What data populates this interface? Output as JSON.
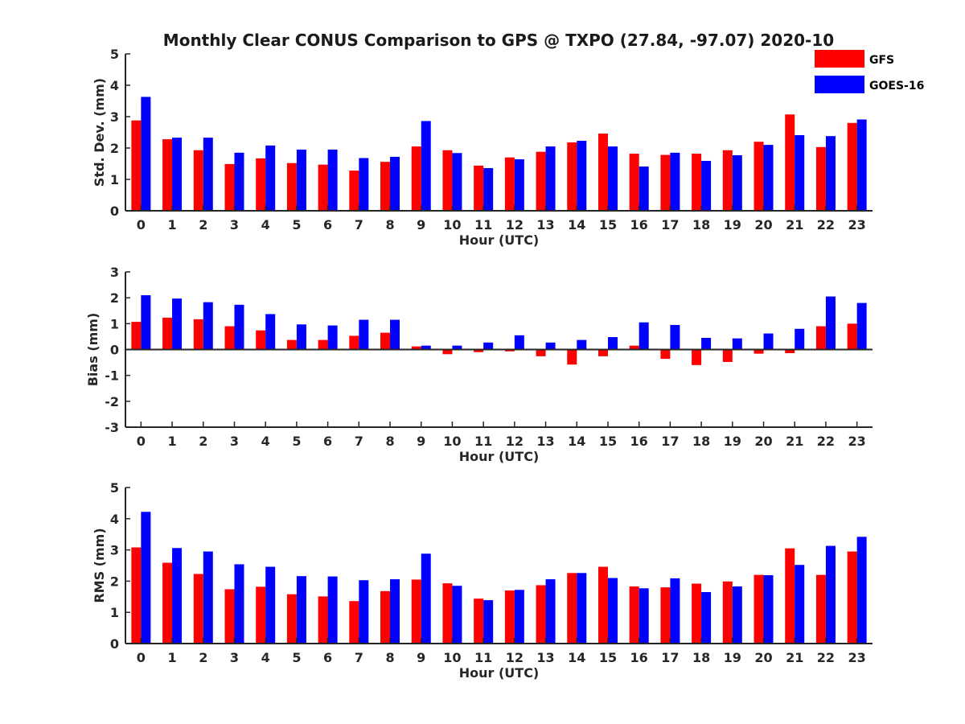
{
  "title": "Monthly Clear CONUS Comparison to GPS @ TXPO (27.84, -97.07) 2020-10",
  "colors": {
    "GFS": "#ff0000",
    "GOES-16": "#0000ff"
  },
  "legend": [
    "GFS",
    "GOES-16"
  ],
  "chart_data": [
    {
      "type": "bar",
      "title": "Monthly Clear CONUS Comparison to GPS @ TXPO (27.84, -97.07) 2020-10",
      "xlabel": "Hour (UTC)",
      "ylabel": "Std. Dev. (mm)",
      "ylim": [
        0,
        5
      ],
      "yticks": [
        0,
        1,
        2,
        3,
        4,
        5
      ],
      "categories": [
        "0",
        "1",
        "2",
        "3",
        "4",
        "5",
        "6",
        "7",
        "8",
        "9",
        "10",
        "11",
        "12",
        "13",
        "14",
        "15",
        "16",
        "17",
        "18",
        "19",
        "20",
        "21",
        "22",
        "23"
      ],
      "series": [
        {
          "name": "GFS",
          "values": [
            2.88,
            2.28,
            1.93,
            1.49,
            1.67,
            1.52,
            1.47,
            1.28,
            1.56,
            2.05,
            1.93,
            1.44,
            1.7,
            1.88,
            2.18,
            2.46,
            1.82,
            1.78,
            1.82,
            1.93,
            2.2,
            3.07,
            2.03,
            2.8
          ]
        },
        {
          "name": "GOES-16",
          "values": [
            3.63,
            2.33,
            2.33,
            1.85,
            2.08,
            1.95,
            1.95,
            1.68,
            1.72,
            2.86,
            1.84,
            1.36,
            1.64,
            2.05,
            2.23,
            2.05,
            1.41,
            1.85,
            1.59,
            1.77,
            2.1,
            2.41,
            2.38,
            2.91
          ]
        }
      ]
    },
    {
      "type": "bar",
      "title": "",
      "xlabel": "Hour (UTC)",
      "ylabel": "Bias (mm)",
      "ylim": [
        -3,
        3
      ],
      "yticks": [
        -3,
        -2,
        -1,
        0,
        1,
        2,
        3
      ],
      "categories": [
        "0",
        "1",
        "2",
        "3",
        "4",
        "5",
        "6",
        "7",
        "8",
        "9",
        "10",
        "11",
        "12",
        "13",
        "14",
        "15",
        "16",
        "17",
        "18",
        "19",
        "20",
        "21",
        "22",
        "23"
      ],
      "series": [
        {
          "name": "GFS",
          "values": [
            1.07,
            1.23,
            1.17,
            0.9,
            0.74,
            0.37,
            0.37,
            0.53,
            0.65,
            0.12,
            -0.18,
            -0.1,
            -0.07,
            -0.26,
            -0.58,
            -0.26,
            0.15,
            -0.36,
            -0.6,
            -0.48,
            -0.16,
            -0.14,
            0.9,
            1.0
          ]
        },
        {
          "name": "GOES-16",
          "values": [
            2.1,
            1.97,
            1.83,
            1.73,
            1.37,
            0.97,
            0.93,
            1.15,
            1.15,
            0.15,
            0.15,
            0.27,
            0.55,
            0.27,
            0.37,
            0.48,
            1.05,
            0.95,
            0.45,
            0.43,
            0.62,
            0.8,
            2.05,
            1.8
          ]
        }
      ]
    },
    {
      "type": "bar",
      "title": "",
      "xlabel": "Hour (UTC)",
      "ylabel": "RMS (mm)",
      "ylim": [
        0,
        5
      ],
      "yticks": [
        0,
        1,
        2,
        3,
        4,
        5
      ],
      "categories": [
        "0",
        "1",
        "2",
        "3",
        "4",
        "5",
        "6",
        "7",
        "8",
        "9",
        "10",
        "11",
        "12",
        "13",
        "14",
        "15",
        "16",
        "17",
        "18",
        "19",
        "20",
        "21",
        "22",
        "23"
      ],
      "series": [
        {
          "name": "GFS",
          "values": [
            3.08,
            2.59,
            2.23,
            1.74,
            1.82,
            1.58,
            1.51,
            1.36,
            1.68,
            2.05,
            1.93,
            1.44,
            1.7,
            1.87,
            2.26,
            2.46,
            1.83,
            1.8,
            1.92,
            1.99,
            2.2,
            3.05,
            2.2,
            2.95
          ]
        },
        {
          "name": "GOES-16",
          "values": [
            4.22,
            3.06,
            2.95,
            2.54,
            2.46,
            2.16,
            2.15,
            2.03,
            2.06,
            2.88,
            1.85,
            1.39,
            1.72,
            2.06,
            2.26,
            2.1,
            1.77,
            2.09,
            1.65,
            1.83,
            2.19,
            2.52,
            3.13,
            3.42
          ]
        }
      ]
    }
  ]
}
